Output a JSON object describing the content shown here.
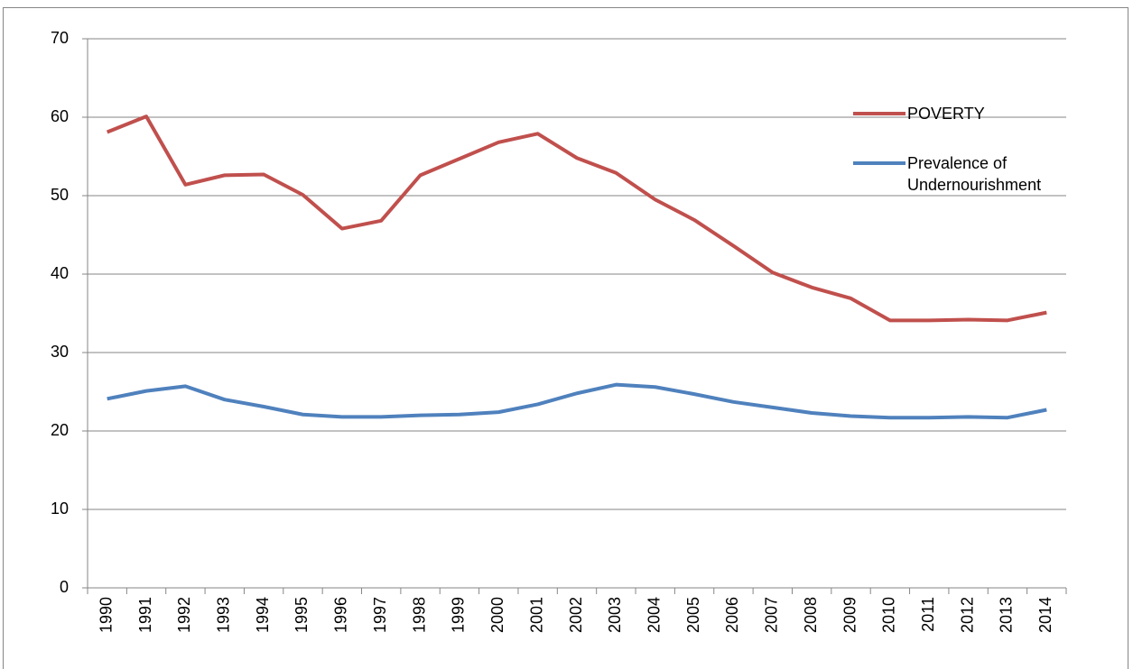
{
  "chart_data": {
    "type": "line",
    "categories": [
      "1990",
      "1991",
      "1992",
      "1993",
      "1994",
      "1995",
      "1996",
      "1997",
      "1998",
      "1999",
      "2000",
      "2001",
      "2002",
      "2003",
      "2004",
      "2005",
      "2006",
      "2007",
      "2008",
      "2009",
      "2010",
      "2011",
      "2012",
      "2013",
      "2014"
    ],
    "series": [
      {
        "name": "POVERTY",
        "color": "#c0504d",
        "values": [
          58.1,
          60.1,
          51.4,
          52.6,
          52.7,
          50.1,
          45.8,
          46.8,
          52.6,
          54.7,
          56.8,
          57.9,
          54.8,
          52.9,
          49.5,
          46.9,
          43.6,
          40.2,
          38.3,
          36.9,
          34.1,
          34.1,
          34.2,
          34.1,
          35.1
        ]
      },
      {
        "name": "Prevalence of Undernourishment",
        "color": "#4f81bd",
        "values": [
          24.1,
          25.1,
          25.7,
          24.0,
          23.1,
          22.1,
          21.8,
          21.8,
          22.0,
          22.1,
          22.4,
          23.4,
          24.8,
          25.9,
          25.6,
          24.7,
          23.7,
          23.0,
          22.3,
          21.9,
          21.7,
          21.7,
          21.8,
          21.7,
          22.7
        ]
      }
    ],
    "ylim": [
      0,
      70
    ],
    "yticks": [
      0,
      10,
      20,
      30,
      40,
      50,
      60,
      70
    ],
    "grid": true,
    "legend": "right"
  }
}
